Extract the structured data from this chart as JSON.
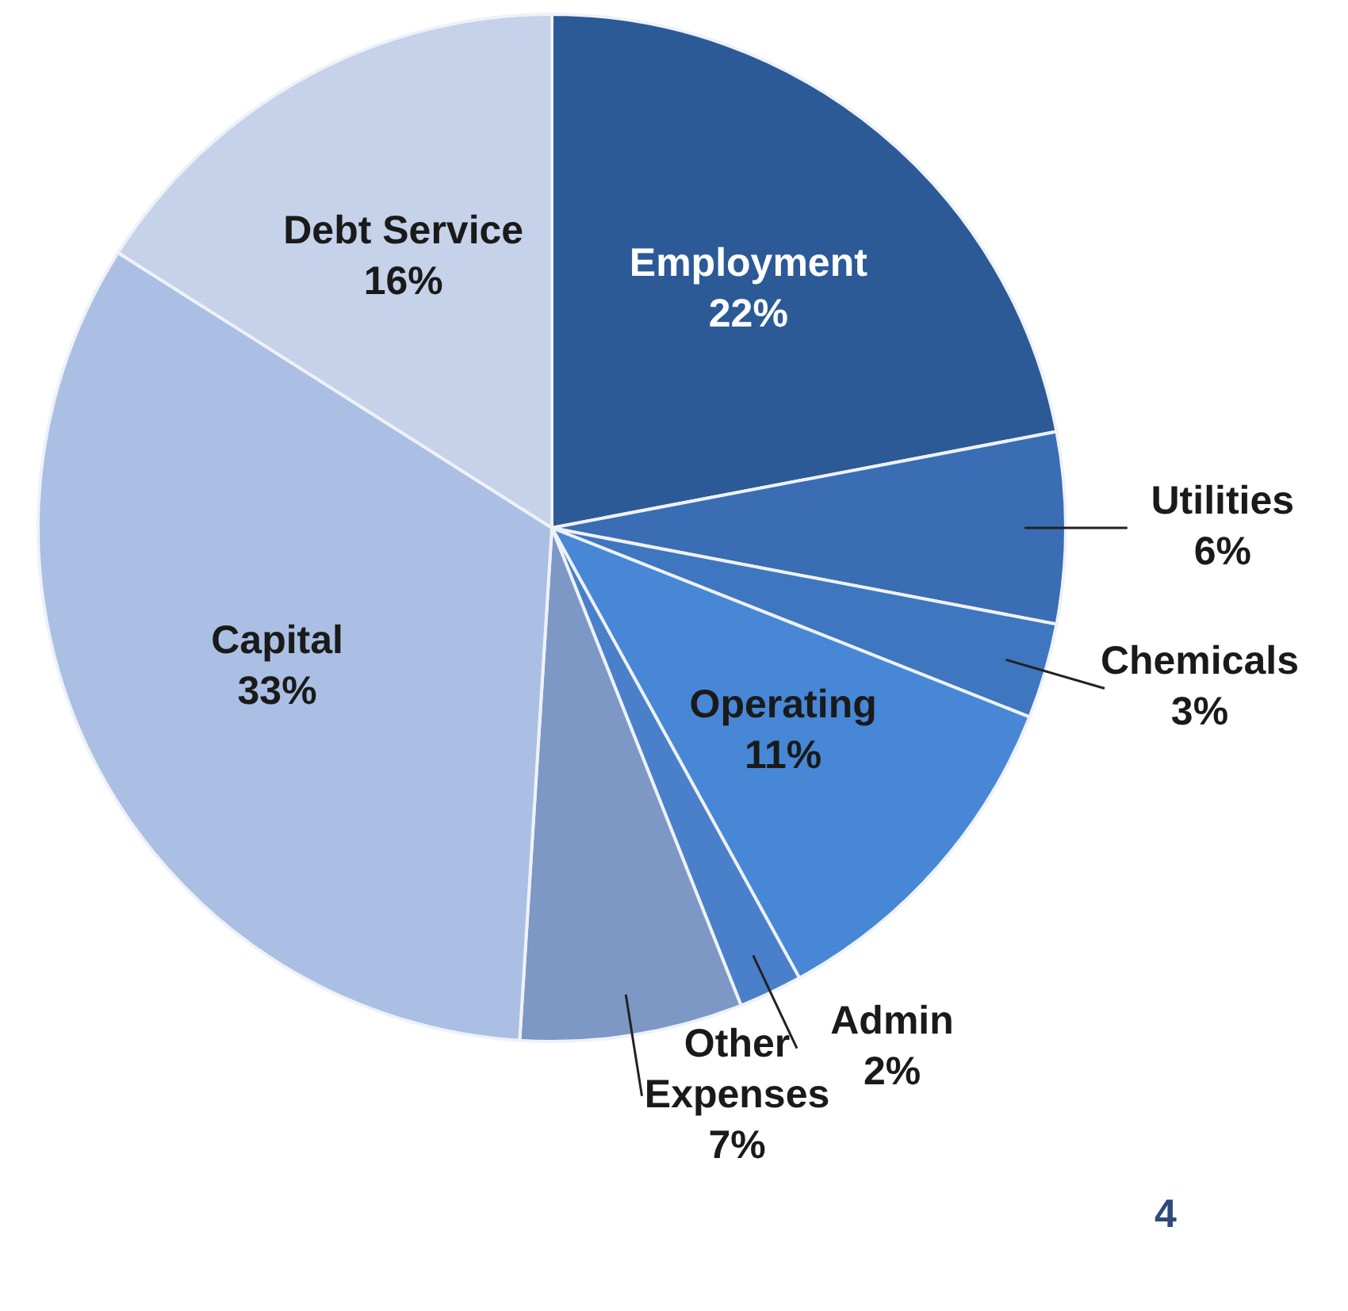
{
  "chart_data": {
    "type": "pie",
    "categories": [
      "Employment",
      "Utilities",
      "Chemicals",
      "Operating",
      "Admin",
      "Other Expenses",
      "Capital",
      "Debt Service"
    ],
    "values": [
      22,
      6,
      3,
      11,
      2,
      7,
      33,
      16
    ],
    "value_labels": [
      "22%",
      "6%",
      "3%",
      "11%",
      "2%",
      "7%",
      "33%",
      "16%"
    ],
    "colors": [
      "#2c5a97",
      "#3a6db3",
      "#3e76bf",
      "#4787d6",
      "#4a80c9",
      "#7d98c5",
      "#aabfe3",
      "#c5d2e9"
    ],
    "legend": false,
    "annotations": [
      "4"
    ]
  }
}
